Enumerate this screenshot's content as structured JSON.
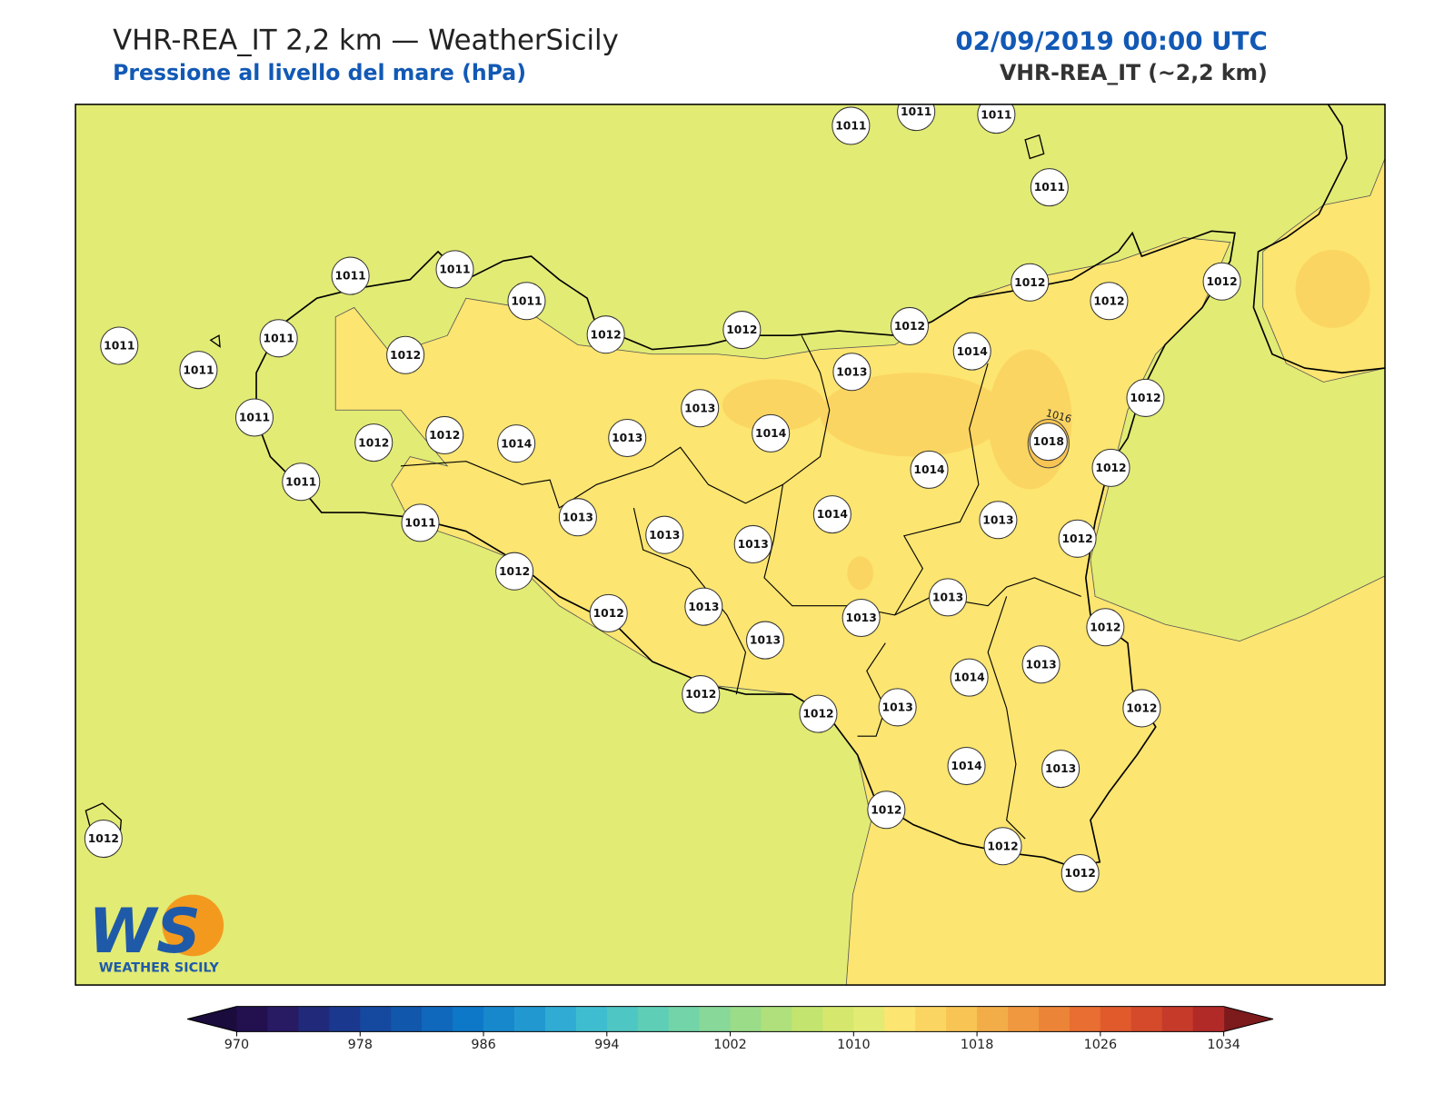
{
  "header": {
    "title": "VHR-REA_IT 2,2 km — WeatherSicily",
    "subtitle": "Pressione al livello del mare (hPa)",
    "datetime": "02/09/2019 00:00 UTC",
    "model": "VHR-REA_IT (~2,2 km)"
  },
  "stations": [
    1011,
    1011,
    1011,
    1011,
    1011,
    1011,
    1011,
    1012,
    1012,
    1012,
    1012,
    1012,
    1012,
    1011,
    1011,
    1011,
    1012,
    1011,
    1012,
    1012,
    1014,
    1013,
    1013,
    1014,
    1013,
    1014,
    1012,
    1018,
    1012,
    1014,
    1011,
    1011,
    1013,
    1013,
    1013,
    1014,
    1013,
    1012,
    1012,
    1012,
    1013,
    1013,
    1013,
    1013,
    1012,
    1014,
    1013,
    1012,
    1012,
    1013,
    1012,
    1014,
    1013,
    1012,
    1012,
    1012,
    1012
  ],
  "contour_labels": [
    "1016"
  ],
  "logo": {
    "mark": "WS",
    "name": "WEATHER SICILY"
  },
  "colorbar": {
    "lim": [
      970,
      1034
    ],
    "ticks": [
      970,
      978,
      986,
      994,
      1002,
      1010,
      1018,
      1026,
      1034
    ],
    "colors": [
      "#22104f",
      "#291a64",
      "#20297a",
      "#1a398e",
      "#15499f",
      "#1158ad",
      "#0f68bc",
      "#0e78c8",
      "#1888cd",
      "#2298d1",
      "#30abd4",
      "#3ebdd0",
      "#4ec6c3",
      "#5ecfb6",
      "#72d4a8",
      "#87d899",
      "#9bdc89",
      "#afe07b",
      "#c3e46f",
      "#d5e86d",
      "#e2eb74",
      "#fce570",
      "#fbd562",
      "#f8c453",
      "#f3ad48",
      "#f0983f",
      "#ec8438",
      "#e86e31",
      "#e05a2c",
      "#d44a2a",
      "#c63a2a",
      "#b22a28"
    ],
    "under": "#1a0c3c",
    "over": "#7c1a1c"
  }
}
